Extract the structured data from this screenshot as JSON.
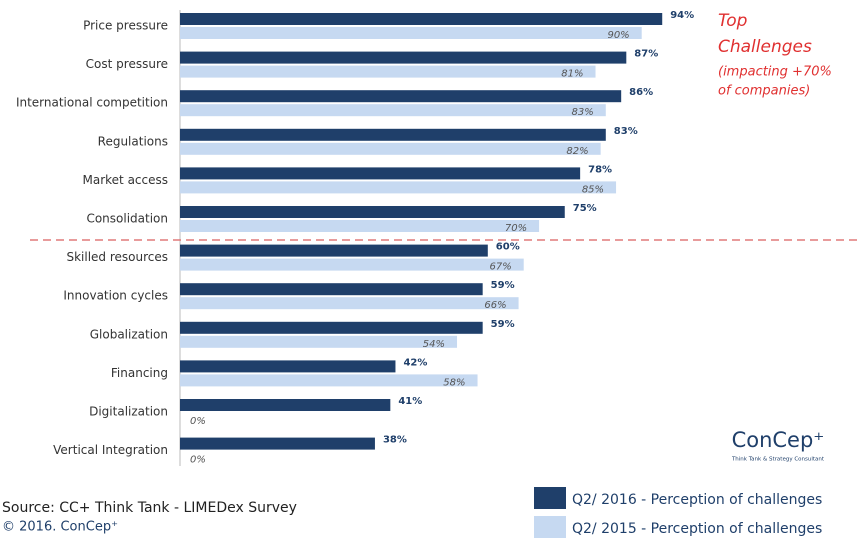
{
  "chart_data": {
    "type": "bar",
    "orientation": "horizontal",
    "categories": [
      "Price pressure",
      "Cost pressure",
      "International competition",
      "Regulations",
      "Market access",
      "Consolidation",
      "Skilled resources",
      "Innovation cycles",
      "Globalization",
      "Financing",
      "Digitalization",
      "Vertical Integration"
    ],
    "series": [
      {
        "name": "Q2/ 2016 - Perception of challenges",
        "color": "#1f3f6a",
        "values": [
          94,
          87,
          86,
          83,
          78,
          75,
          60,
          59,
          59,
          42,
          41,
          38
        ],
        "value_labels": [
          "94%",
          "87%",
          "86%",
          "83%",
          "78%",
          "75%",
          "60%",
          "59%",
          "59%",
          "42%",
          "41%",
          "38%"
        ]
      },
      {
        "name": "Q2/ 2015 - Perception of challenges",
        "color": "#c6d9f1",
        "values": [
          90,
          81,
          83,
          82,
          85,
          70,
          67,
          66,
          54,
          58,
          0,
          0
        ],
        "value_labels": [
          "90%",
          "81%",
          "83%",
          "82%",
          "85%",
          "70%",
          "67%",
          "66%",
          "54%",
          "58%",
          "0%",
          "0%"
        ]
      }
    ],
    "xlim": [
      0,
      100
    ],
    "annotation": [
      "Top",
      "Challenges",
      "(impacting +70%",
      "of companies)"
    ],
    "logo": "ConCep⁺",
    "logo_tagline": "Think Tank & Strategy Consultant",
    "source": "Source: CC+ Think Tank - LIMEDex Survey",
    "copyright": "© 2016. ConCep⁺"
  }
}
